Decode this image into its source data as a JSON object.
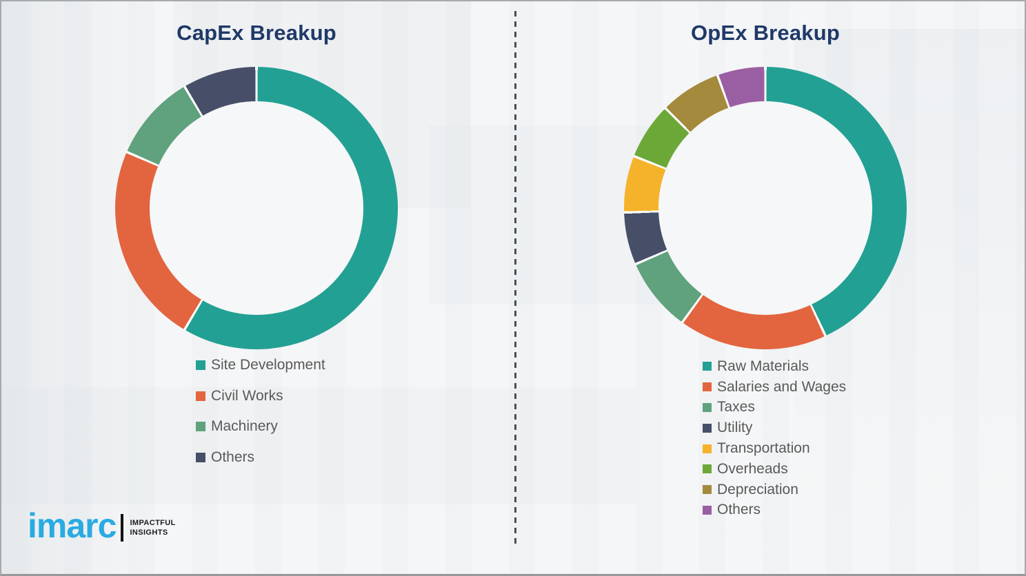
{
  "colors": {
    "title-color": "#1F3968",
    "legend-text-color": "#595959",
    "logo-blue": "#29ABE2",
    "divider-color": "#4D4D4D"
  },
  "chart_data": [
    {
      "type": "pie",
      "subtype": "donut",
      "title": "CapEx Breakup",
      "categories": [
        "Site Development",
        "Civil Works",
        "Machinery",
        "Others"
      ],
      "values_pct": [
        58.5,
        23,
        10,
        8.5
      ],
      "colors": [
        "#23A094",
        "#E2653F",
        "#5FA27D",
        "#474F68"
      ],
      "legend_position": "bottom",
      "start_angle_deg": 0,
      "direction": "clockwise"
    },
    {
      "type": "pie",
      "subtype": "donut",
      "title": "OpEx Breakup",
      "categories": [
        "Raw Materials",
        "Salaries and Wages",
        "Taxes",
        "Utility",
        "Transportation",
        "Overheads",
        "Depreciation",
        "Others"
      ],
      "values_pct": [
        43,
        17,
        8.5,
        6,
        6.5,
        6.5,
        7,
        5.5
      ],
      "colors": [
        "#23A094",
        "#E2653F",
        "#5FA27D",
        "#474F68",
        "#F5B32B",
        "#6CA838",
        "#A48A3C",
        "#9A5FA2"
      ],
      "legend_position": "bottom",
      "start_angle_deg": 0,
      "direction": "clockwise"
    }
  ],
  "logo": {
    "brand": "imarc",
    "tagline_line1": "IMPACTFUL",
    "tagline_line2": "INSIGHTS"
  }
}
